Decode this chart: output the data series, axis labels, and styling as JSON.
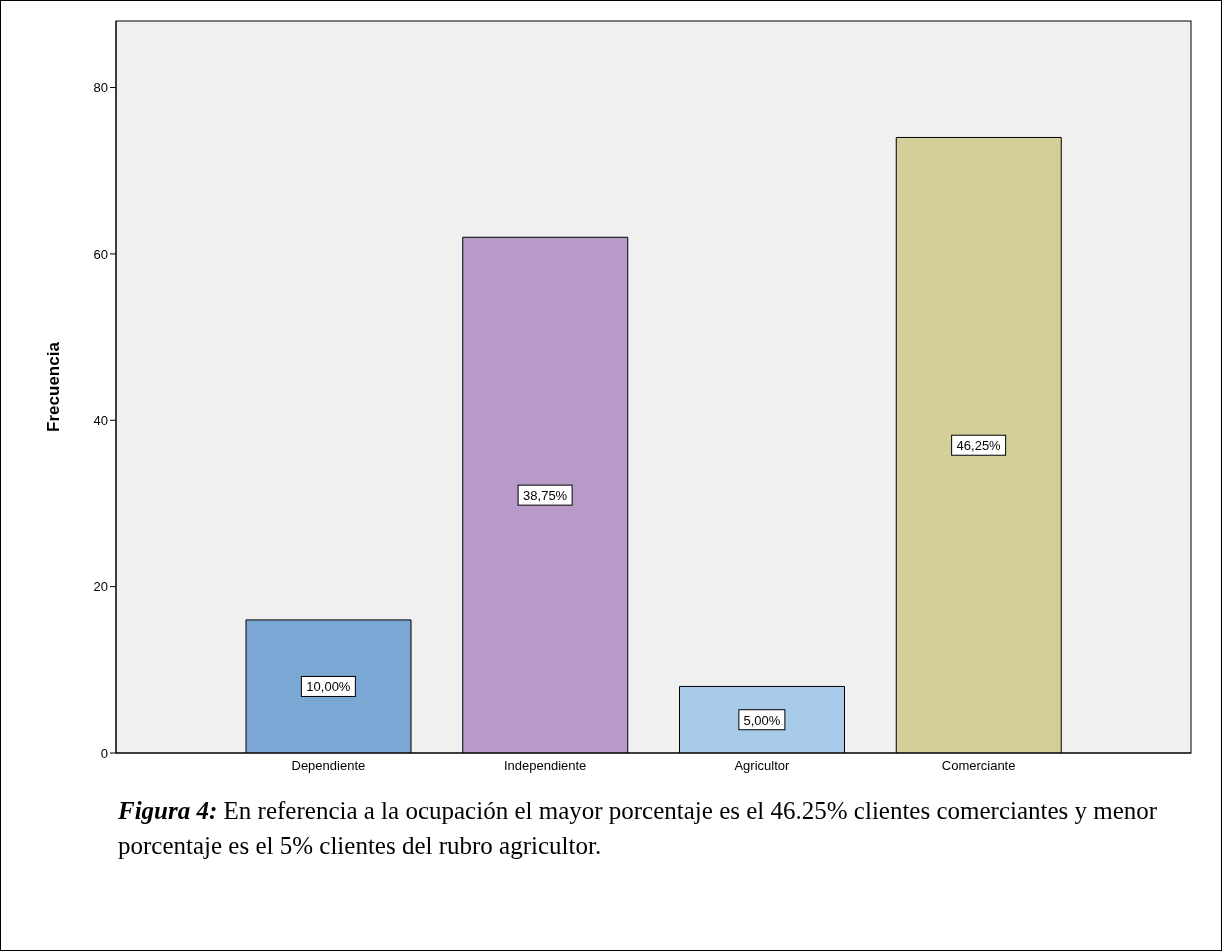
{
  "chart_data": {
    "type": "bar",
    "categories": [
      "Dependiente",
      "Independiente",
      "Agricultor",
      "Comerciante"
    ],
    "values": [
      16,
      62,
      8,
      74
    ],
    "colors": [
      "#7ba7d5",
      "#b89ac9",
      "#a7cbe9",
      "#d4cf98"
    ],
    "ylabel": "Frecuencia",
    "ylim": [
      0,
      88
    ],
    "yticks": [
      0,
      20,
      40,
      60,
      80
    ],
    "grid": false,
    "legend": false,
    "annotations": [
      "10,00%",
      "38,75%",
      "5,00%",
      "46,25%",
      "Figura 4:",
      "En referencia a la ocupación el mayor porcentaje es el 46.25% clientes comerciantes y menor porcentaje es el 5% clientes del rubro agricultor."
    ]
  }
}
